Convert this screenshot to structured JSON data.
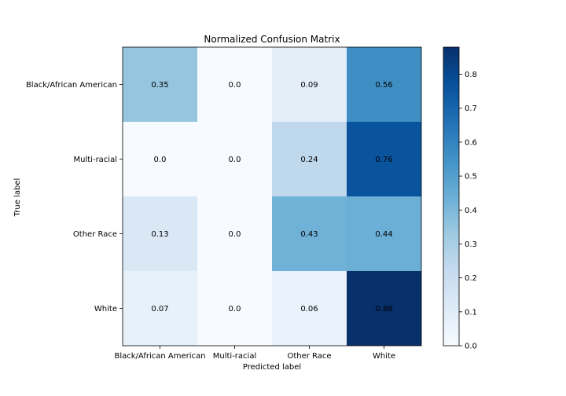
{
  "chart_data": {
    "type": "heatmap",
    "title": "Normalized Confusion Matrix",
    "xlabel": "Predicted label",
    "ylabel": "True label",
    "row_labels": [
      "Black/African American",
      "Multi-racial",
      "Other Race",
      "White"
    ],
    "col_labels": [
      "Black/African American",
      "Multi-racial",
      "Other Race",
      "White"
    ],
    "values": [
      [
        0.35,
        0.0,
        0.09,
        0.56
      ],
      [
        0.0,
        0.0,
        0.24,
        0.76
      ],
      [
        0.13,
        0.0,
        0.43,
        0.44
      ],
      [
        0.07,
        0.0,
        0.06,
        0.88
      ]
    ],
    "cell_labels": [
      [
        "0.35",
        "0.0",
        "0.09",
        "0.56"
      ],
      [
        "0.0",
        "0.0",
        "0.24",
        "0.76"
      ],
      [
        "0.13",
        "0.0",
        "0.43",
        "0.44"
      ],
      [
        "0.07",
        "0.0",
        "0.06",
        "0.88"
      ]
    ],
    "colormap": "Blues",
    "colorbar": {
      "min": 0.0,
      "max": 0.88,
      "ticks": [
        0.0,
        0.1,
        0.2,
        0.3,
        0.4,
        0.5,
        0.6,
        0.7,
        0.8
      ],
      "tick_labels": [
        "0.0",
        "0.1",
        "0.2",
        "0.3",
        "0.4",
        "0.5",
        "0.6",
        "0.7",
        "0.8"
      ]
    },
    "grid": false
  }
}
